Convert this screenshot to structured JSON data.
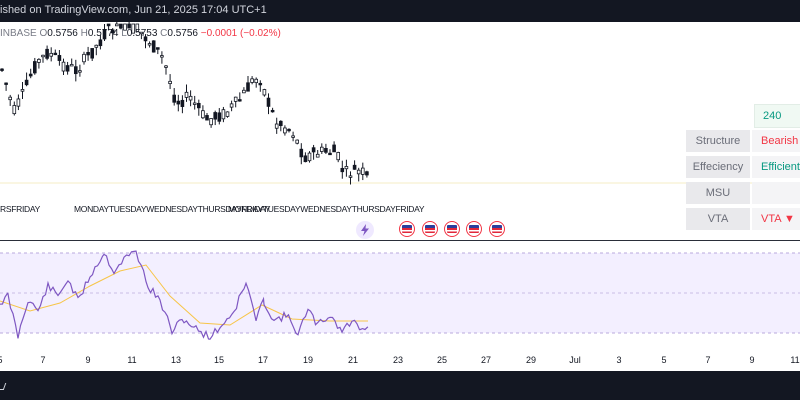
{
  "header": {
    "published_text": "ished on TradingView.com, Jun 21, 2025 17:04 UTC+1"
  },
  "ohlc": {
    "symbol_fragment": "INBASE",
    "o_label": "O",
    "o_value": "0.5756",
    "h_label": "H",
    "h_value": "0.5774",
    "l_label": "L",
    "l_value": "0.5753",
    "c_label": "C",
    "c_value": "0.5756",
    "change": "−0.0001 (−0.02%)"
  },
  "session_labels": [
    "RSFRIDAY",
    "MONDAYTUESDAYWEDNESDAYTHURSDAYFRIDAY",
    "MONDAYTUESDAYWEDNESDAYTHURSDAYFRIDAY"
  ],
  "events": {
    "count_flags": 5,
    "flag_icon": "us-flag-icon",
    "bolt_icon": "lightning-bolt-icon"
  },
  "indicator_panel": {
    "top_badge": "240",
    "rows": [
      {
        "label": "Structure",
        "value": "Bearish",
        "color": "#f23645"
      },
      {
        "label": "Effeciency",
        "value": "Efficient",
        "color": "#089981"
      },
      {
        "label": "MSU",
        "value": "",
        "color": "#131722"
      },
      {
        "label": "VTA",
        "value": "VTA ▼",
        "color": "#f23645"
      }
    ]
  },
  "time_axis": [
    "5",
    "7",
    "9",
    "11",
    "13",
    "15",
    "17",
    "19",
    "21",
    "23",
    "25",
    "27",
    "29",
    "Jul",
    "3",
    "5",
    "7",
    "9",
    "11"
  ],
  "colors": {
    "up": "#131722",
    "down": "#131722",
    "rsi_line": "#7e57c2",
    "rsi_ma": "#f7c548",
    "rsi_band": "#7e57c2"
  }
}
